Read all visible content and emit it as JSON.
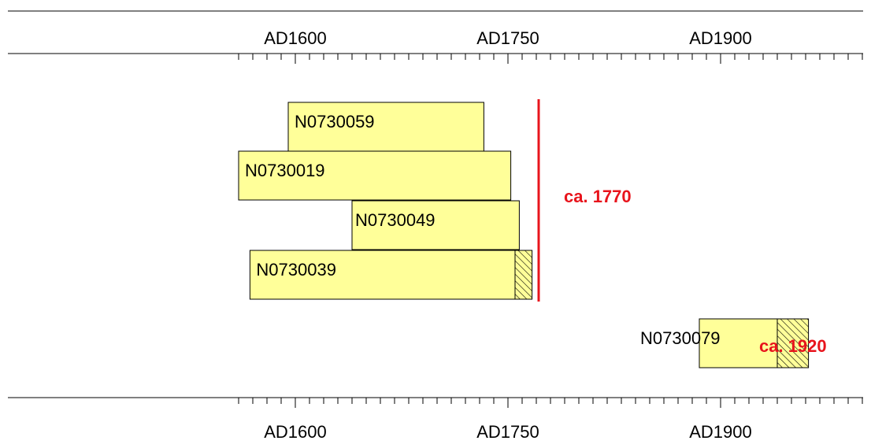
{
  "chart_data": {
    "type": "bar",
    "orientation": "horizontal",
    "axis": {
      "min_year": 1475,
      "max_year": 2000,
      "major_ticks": [
        1600,
        1750,
        1900
      ],
      "tick_labels": [
        "AD1600",
        "AD1750",
        "AD1900"
      ],
      "minor_tick_step": 10,
      "positions": [
        "top",
        "bottom"
      ]
    },
    "samples": [
      {
        "id": "N0730059",
        "start": 1595,
        "end": 1733,
        "sapwood_end": null,
        "row": 0
      },
      {
        "id": "N0730019",
        "start": 1560,
        "end": 1752,
        "sapwood_end": null,
        "row": 1
      },
      {
        "id": "N0730049",
        "start": 1640,
        "end": 1758,
        "sapwood_end": null,
        "row": 2
      },
      {
        "id": "N0730039",
        "start": 1568,
        "end": 1755,
        "sapwood_end": 1767,
        "row": 3
      },
      {
        "id": "N0730079",
        "start": 1885,
        "end": 1940,
        "sapwood_end": 1962,
        "row": 4
      }
    ],
    "felling_dates": [
      {
        "label": "ca. 1770",
        "year": 1770,
        "line": true,
        "color": "#e8141c"
      },
      {
        "label": "ca. 1920",
        "year": 1920,
        "line": false,
        "color": "#e8141c"
      }
    ],
    "colors": {
      "bar_fill": "#ffff99",
      "bar_stroke": "#000000",
      "hatch": "#000000",
      "felling": "#e8141c"
    }
  }
}
